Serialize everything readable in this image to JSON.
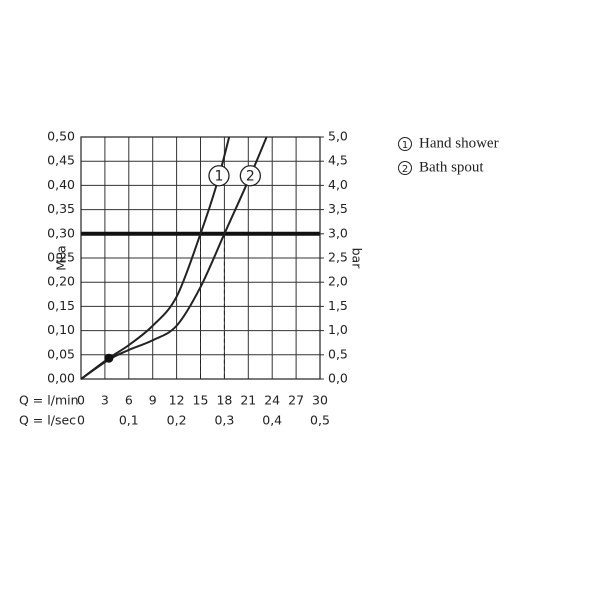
{
  "chart_data": {
    "type": "line",
    "y_label": "MPa",
    "y2_label": "bar",
    "x_label": "Q = l/min",
    "x2_label": "Q = l/sec",
    "xlim": [
      0,
      30
    ],
    "xticks": [
      0,
      3,
      6,
      9,
      12,
      15,
      18,
      21,
      24,
      27,
      30
    ],
    "x2lim": [
      0,
      0.5
    ],
    "x2ticks": [
      0,
      {
        "value": 0.1,
        "label": "0,1"
      },
      {
        "value": 0.2,
        "label": "0,2"
      },
      {
        "value": 0.3,
        "label": "0,3"
      },
      {
        "value": 0.4,
        "label": "0,4"
      },
      {
        "value": 0.5,
        "label": "0,5"
      }
    ],
    "ylim": [
      0,
      0.5
    ],
    "yticks": [
      {
        "value": 0,
        "label": "0,00"
      },
      {
        "value": 0.05,
        "label": "0,05"
      },
      {
        "value": 0.1,
        "label": "0,10"
      },
      {
        "value": 0.15,
        "label": "0,15"
      },
      {
        "value": 0.2,
        "label": "0,20"
      },
      {
        "value": 0.25,
        "label": "0,25"
      },
      {
        "value": 0.3,
        "label": "0,30"
      },
      {
        "value": 0.35,
        "label": "0,35"
      },
      {
        "value": 0.4,
        "label": "0,40"
      },
      {
        "value": 0.45,
        "label": "0,45"
      },
      {
        "value": 0.5,
        "label": "0,50"
      }
    ],
    "y2lim": [
      0,
      5
    ],
    "y2ticks": [
      {
        "value": 0,
        "label": "0,0"
      },
      {
        "value": 0.5,
        "label": "0,5"
      },
      {
        "value": 1,
        "label": "1,0"
      },
      {
        "value": 1.5,
        "label": "1,5"
      },
      {
        "value": 2,
        "label": "2,0"
      },
      {
        "value": 2.5,
        "label": "2,5"
      },
      {
        "value": 3,
        "label": "3,0"
      },
      {
        "value": 3.5,
        "label": "3,5"
      },
      {
        "value": 4,
        "label": "4,0"
      },
      {
        "value": 4.5,
        "label": "4,5"
      },
      {
        "value": 5,
        "label": "5,0"
      }
    ],
    "grid": true,
    "hline": 0.3,
    "vlines": [
      15,
      18
    ],
    "point": {
      "x": 3.5,
      "y": 0.043
    },
    "series": [
      {
        "name": "Hand shower",
        "label": "1",
        "color": "#222222",
        "x": [
          0,
          3.5,
          6,
          9,
          12,
          15,
          17,
          18.6
        ],
        "values": [
          0,
          0.043,
          0.07,
          0.11,
          0.17,
          0.3,
          0.4,
          0.5
        ]
      },
      {
        "name": "Bath spout",
        "label": "2",
        "color": "#222222",
        "x": [
          0,
          3.5,
          6,
          9,
          12,
          15,
          18,
          21,
          23.3
        ],
        "values": [
          0,
          0.04,
          0.06,
          0.08,
          0.11,
          0.19,
          0.3,
          0.41,
          0.5
        ]
      }
    ]
  }
}
